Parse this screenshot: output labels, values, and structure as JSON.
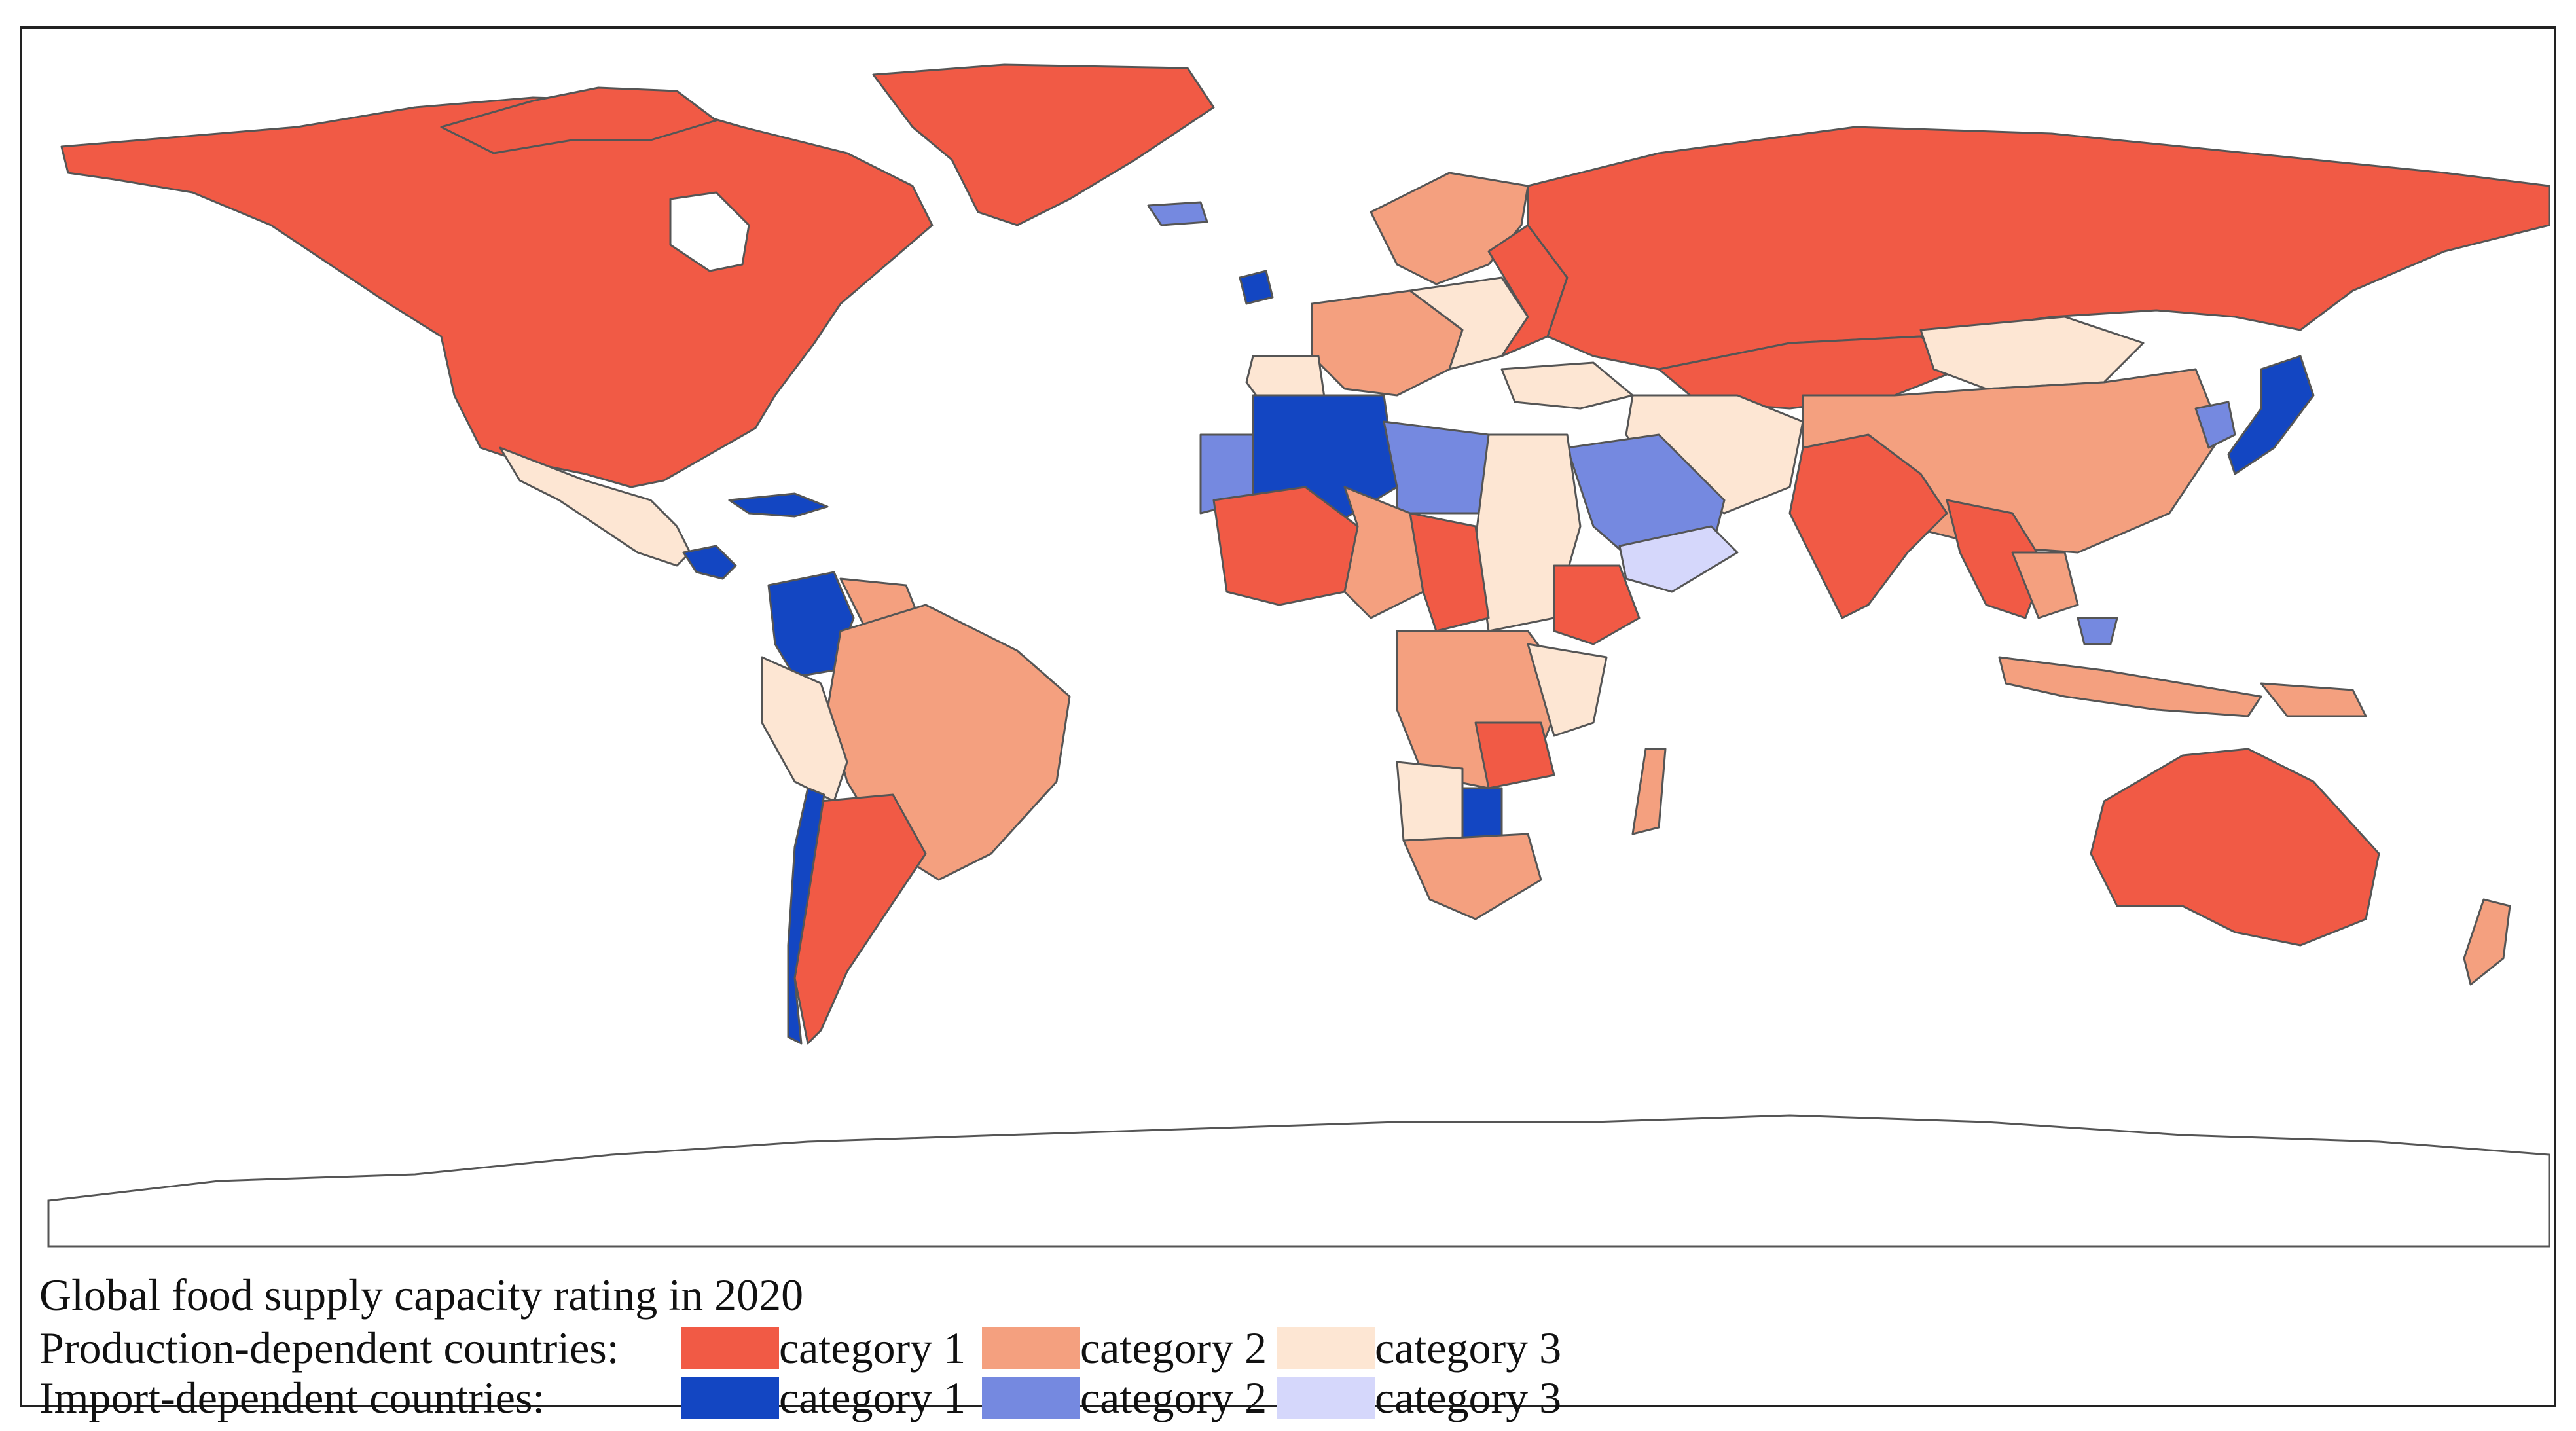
{
  "colors": {
    "production_category_1": "#f15a45",
    "production_category_2": "#f4a07f",
    "production_category_3": "#fde6d3",
    "import_category_1": "#1346c2",
    "import_category_2": "#7589e0",
    "import_category_3": "#d5d7fb",
    "border": "#555555",
    "ocean": "#ffffff",
    "antarctica": "#ffffff"
  },
  "legend": {
    "title": "Global food supply capacity rating in 2020",
    "rows": [
      {
        "label": "Production-dependent countries:",
        "items": [
          {
            "label": "category 1",
            "color_key": "production_category_1"
          },
          {
            "label": "category 2",
            "color_key": "production_category_2"
          },
          {
            "label": "category 3",
            "color_key": "production_category_3"
          }
        ]
      },
      {
        "label": "Import-dependent countries:",
        "items": [
          {
            "label": "category 1",
            "color_key": "import_category_1"
          },
          {
            "label": "category 2",
            "color_key": "import_category_2"
          },
          {
            "label": "category 3",
            "color_key": "import_category_3"
          }
        ]
      }
    ]
  }
}
